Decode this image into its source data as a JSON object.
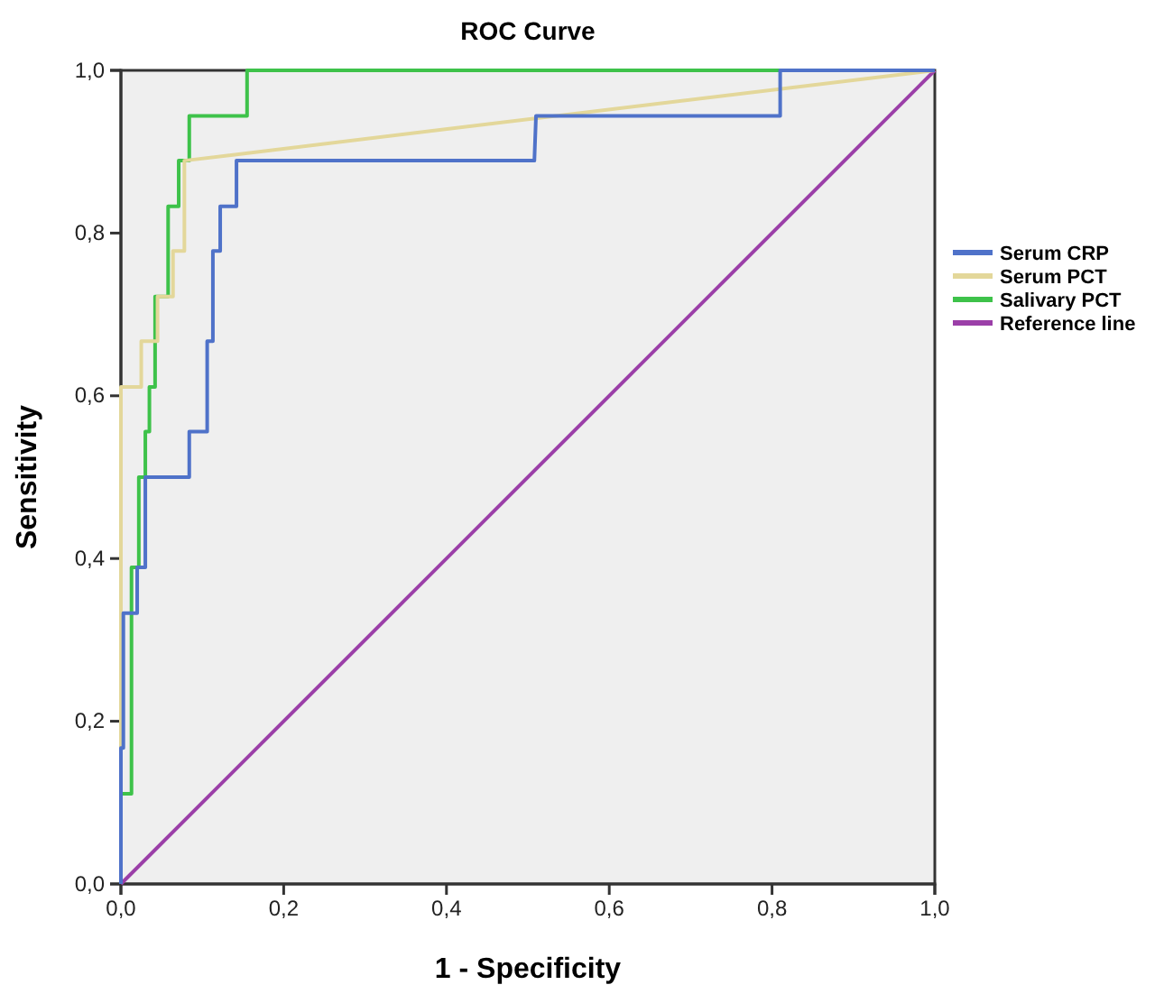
{
  "chart_data": {
    "type": "line",
    "title": "ROC Curve",
    "xlabel": "1 - Specificity",
    "ylabel": "Sensitivity",
    "xlim": [
      0,
      1
    ],
    "ylim": [
      0,
      1
    ],
    "xticks": [
      {
        "value": 0,
        "label": "0,0"
      },
      {
        "value": 0.2,
        "label": "0,2"
      },
      {
        "value": 0.4,
        "label": "0,4"
      },
      {
        "value": 0.6,
        "label": "0,6"
      },
      {
        "value": 0.8,
        "label": "0,8"
      },
      {
        "value": 1,
        "label": "1,0"
      }
    ],
    "yticks": [
      {
        "value": 0,
        "label": "0,0"
      },
      {
        "value": 0.2,
        "label": "0,2"
      },
      {
        "value": 0.4,
        "label": "0,4"
      },
      {
        "value": 0.6,
        "label": "0,6"
      },
      {
        "value": 0.8,
        "label": "0,8"
      },
      {
        "value": 1,
        "label": "1,0"
      }
    ],
    "grid": false,
    "legend": "right",
    "marker": "none",
    "line_style": "solid",
    "series": [
      {
        "name": "Serum CRP",
        "color": "#4f72c9",
        "x": [
          0,
          0,
          0.003,
          0.003,
          0.02,
          0.02,
          0.03,
          0.03,
          0.084,
          0.084,
          0.106,
          0.106,
          0.113,
          0.113,
          0.122,
          0.122,
          0.142,
          0.142,
          0.508,
          0.51,
          0.81,
          0.81,
          1
        ],
        "values": [
          0,
          0.167,
          0.167,
          0.333,
          0.333,
          0.389,
          0.389,
          0.5,
          0.5,
          0.556,
          0.556,
          0.667,
          0.667,
          0.778,
          0.778,
          0.833,
          0.833,
          0.889,
          0.889,
          0.944,
          0.944,
          1,
          1
        ]
      },
      {
        "name": "Serum PCT",
        "color": "#e3d79a",
        "x": [
          0,
          0,
          0.025,
          0.025,
          0.045,
          0.045,
          0.064,
          0.064,
          0.078,
          0.078,
          1
        ],
        "values": [
          0,
          0.611,
          0.611,
          0.667,
          0.667,
          0.722,
          0.722,
          0.778,
          0.778,
          0.889,
          1
        ]
      },
      {
        "name": "Salivary PCT",
        "color": "#3ec24a",
        "x": [
          0,
          0,
          0.013,
          0.013,
          0.022,
          0.022,
          0.03,
          0.03,
          0.035,
          0.035,
          0.042,
          0.042,
          0.058,
          0.058,
          0.071,
          0.071,
          0.084,
          0.084,
          0.155,
          0.155,
          1
        ],
        "values": [
          0,
          0.111,
          0.111,
          0.389,
          0.389,
          0.5,
          0.5,
          0.556,
          0.556,
          0.611,
          0.611,
          0.722,
          0.722,
          0.833,
          0.833,
          0.889,
          0.889,
          0.944,
          0.944,
          1,
          1
        ]
      },
      {
        "name": "Reference line",
        "color": "#9b3fa8",
        "x": [
          0,
          1
        ],
        "values": [
          0,
          1
        ]
      }
    ]
  }
}
